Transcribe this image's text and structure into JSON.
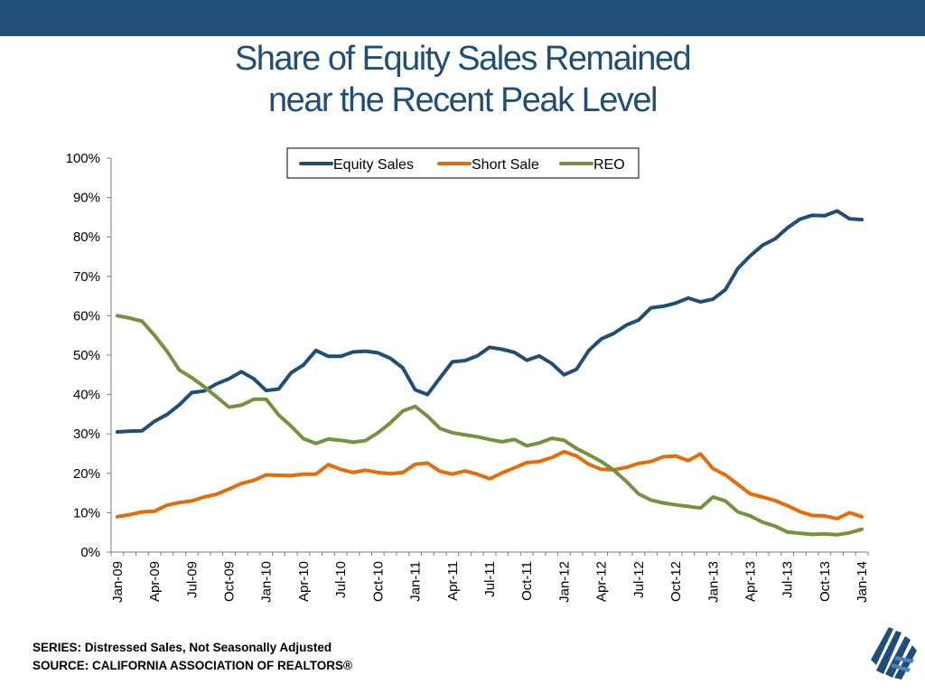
{
  "slide": {
    "title_line1": "Share of Equity Sales Remained",
    "title_line2": "near the Recent Peak Level",
    "footer_series": "SERIES: Distressed Sales, Not Seasonally Adjusted",
    "footer_source": "SOURCE:  CALIFORNIA ASSOCIATION OF REALTORS®",
    "accent_color": "#1f4e79",
    "logo_icon": "car-logo-icon"
  },
  "chart_data": {
    "type": "line",
    "ylim": [
      0,
      100
    ],
    "yticks": [
      0,
      10,
      20,
      30,
      40,
      50,
      60,
      70,
      80,
      90,
      100
    ],
    "ytick_labels": [
      "0%",
      "10%",
      "20%",
      "30%",
      "40%",
      "50%",
      "60%",
      "70%",
      "80%",
      "90%",
      "100%"
    ],
    "xtick_labels": [
      "Jan-09",
      "Apr-09",
      "Jul-09",
      "Oct-09",
      "Jan-10",
      "Apr-10",
      "Jul-10",
      "Oct-10",
      "Jan-11",
      "Apr-11",
      "Jul-11",
      "Oct-11",
      "Jan-12",
      "Apr-12",
      "Jul-12",
      "Oct-12",
      "Jan-13",
      "Apr-13",
      "Jul-13",
      "Oct-13",
      "Jan-14"
    ],
    "legend_position": "top",
    "grid": false,
    "series": [
      {
        "name": "Equity Sales",
        "color": "#1f4e79",
        "values": [
          30.5,
          30.7,
          30.8,
          33.2,
          34.9,
          37.4,
          40.5,
          40.9,
          42.7,
          44.0,
          45.8,
          44.0,
          41.0,
          41.4,
          45.5,
          47.5,
          51.2,
          49.7,
          49.7,
          50.8,
          51.0,
          50.6,
          49.2,
          46.8,
          41.2,
          40.0,
          44.2,
          48.3,
          48.6,
          49.8,
          52.0,
          51.5,
          50.7,
          48.7,
          49.8,
          47.9,
          45.0,
          46.4,
          51.2,
          54.1,
          55.5,
          57.6,
          58.9,
          62.0,
          62.4,
          63.2,
          64.5,
          63.5,
          64.2,
          66.6,
          72.0,
          75.2,
          77.9,
          79.5,
          82.3,
          84.5,
          85.5,
          85.4,
          86.6,
          84.6,
          84.4
        ]
      },
      {
        "name": "Short Sale",
        "color": "#e46c0a",
        "values": [
          9.0,
          9.5,
          10.2,
          10.4,
          11.9,
          12.6,
          13.0,
          14.0,
          14.7,
          16.0,
          17.4,
          18.2,
          19.6,
          19.5,
          19.4,
          19.8,
          19.8,
          22.2,
          21.0,
          20.2,
          20.8,
          20.2,
          19.9,
          20.2,
          22.3,
          22.6,
          20.5,
          19.8,
          20.6,
          19.8,
          18.6,
          20.1,
          21.4,
          22.7,
          23.0,
          24.0,
          25.5,
          24.4,
          22.3,
          21.0,
          20.9,
          21.5,
          22.5,
          23.0,
          24.2,
          24.4,
          23.2,
          24.9,
          21.2,
          19.6,
          17.2,
          14.8,
          14.0,
          13.1,
          11.8,
          10.3,
          9.3,
          9.2,
          8.5,
          10.0,
          9.0
        ]
      },
      {
        "name": "REO",
        "color": "#76923c",
        "values": [
          60.0,
          59.4,
          58.6,
          55.0,
          51.0,
          46.2,
          44.3,
          42.0,
          39.4,
          36.8,
          37.3,
          38.8,
          38.8,
          34.8,
          32.0,
          28.8,
          27.6,
          28.7,
          28.4,
          27.9,
          28.3,
          30.3,
          32.8,
          35.8,
          37.0,
          34.5,
          31.4,
          30.3,
          29.8,
          29.3,
          28.6,
          28.0,
          28.6,
          27.0,
          27.7,
          28.9,
          28.4,
          26.3,
          24.7,
          23.0,
          20.8,
          18.0,
          14.8,
          13.2,
          12.5,
          12.0,
          11.6,
          11.2,
          14.0,
          13.0,
          10.2,
          9.2,
          7.6,
          6.6,
          5.1,
          4.8,
          4.5,
          4.6,
          4.4,
          4.9,
          5.8
        ]
      }
    ]
  }
}
